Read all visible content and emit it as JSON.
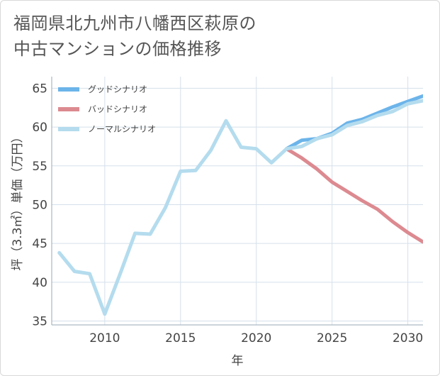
{
  "title_lines": [
    "福岡県北九州市八幡西区萩原の",
    "中古マンションの価格推移"
  ],
  "chart_data": {
    "type": "line",
    "title": "福岡県北九州市八幡西区萩原の中古マンションの価格推移",
    "xlabel": "年",
    "ylabel": "坪（3.3㎡）単価（万円）",
    "xlim": [
      2006.5,
      2031
    ],
    "ylim": [
      34.5,
      66.5
    ],
    "xticks": [
      2010,
      2015,
      2020,
      2025,
      2030
    ],
    "yticks": [
      35,
      40,
      45,
      50,
      55,
      60,
      65
    ],
    "grid": true,
    "legend_position": "top-left",
    "series": [
      {
        "name": "グッドシナリオ",
        "color": "#6cb4ea",
        "x": [
          2022,
          2023,
          2024,
          2025,
          2026,
          2027,
          2028,
          2029,
          2030,
          2031
        ],
        "y": [
          57.2,
          58.3,
          58.5,
          59.2,
          60.5,
          61.0,
          61.8,
          62.6,
          63.3,
          64.0
        ]
      },
      {
        "name": "バッドシナリオ",
        "color": "#dc8a90",
        "x": [
          2022,
          2023,
          2024,
          2025,
          2026,
          2027,
          2028,
          2029,
          2030,
          2031
        ],
        "y": [
          57.2,
          56.0,
          54.6,
          52.9,
          51.7,
          50.5,
          49.4,
          47.8,
          46.4,
          45.2
        ]
      },
      {
        "name": "ノーマルシナリオ",
        "color": "#b4dcee",
        "x": [
          2007,
          2008,
          2009,
          2010,
          2011,
          2012,
          2013,
          2014,
          2015,
          2016,
          2017,
          2018,
          2019,
          2020,
          2021,
          2022,
          2023,
          2024,
          2025,
          2026,
          2027,
          2028,
          2029,
          2030,
          2031
        ],
        "y": [
          43.8,
          41.4,
          41.1,
          35.9,
          41.0,
          46.3,
          46.2,
          49.6,
          54.3,
          54.4,
          57.0,
          60.8,
          57.4,
          57.2,
          55.4,
          57.2,
          57.5,
          58.5,
          59.0,
          60.2,
          60.7,
          61.5,
          62.0,
          63.0,
          63.4
        ]
      }
    ]
  }
}
